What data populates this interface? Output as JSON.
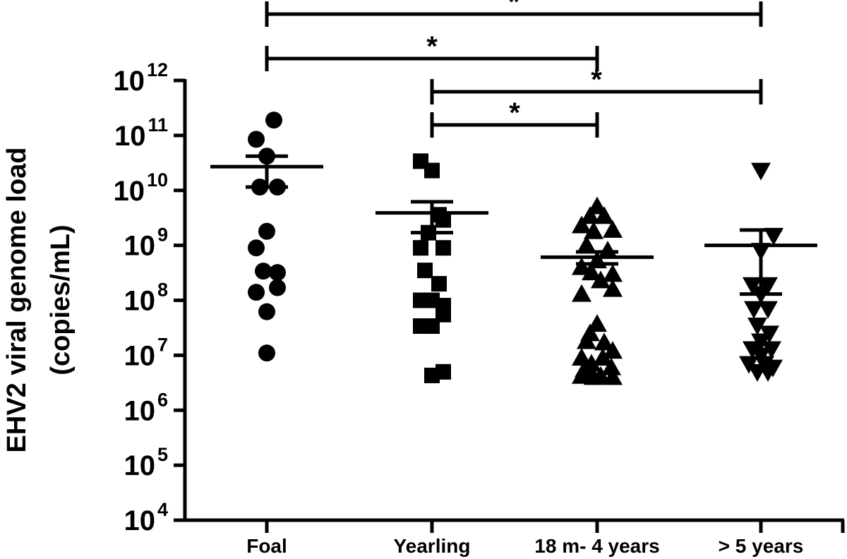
{
  "chart_data": {
    "type": "scatter",
    "yscale": "log10",
    "ylim": [
      10000.0,
      1000000000000.0
    ],
    "ylabel": [
      "EHV2 viral genome load",
      "(copies/mL)"
    ],
    "yticks": [
      {
        "base": "10",
        "exp": "4"
      },
      {
        "base": "10",
        "exp": "5"
      },
      {
        "base": "10",
        "exp": "6"
      },
      {
        "base": "10",
        "exp": "7"
      },
      {
        "base": "10",
        "exp": "8"
      },
      {
        "base": "10",
        "exp": "9"
      },
      {
        "base": "10",
        "exp": "10"
      },
      {
        "base": "10",
        "exp": "11"
      },
      {
        "base": "10",
        "exp": "12"
      }
    ],
    "categories": [
      "Foal",
      "Yearling",
      "18 m- 4 years",
      "> 5 years"
    ],
    "groups": [
      {
        "name": "Foal",
        "marker": "circle",
        "mean": 27000000000.0,
        "sem_low": 11500000000.0,
        "sem_high": 42000000000.0,
        "points": [
          {
            "value": 190000000000.0,
            "offset": 0.1
          },
          {
            "value": 85000000000.0,
            "offset": -0.15
          },
          {
            "value": 42000000000.0,
            "offset": 0.0
          },
          {
            "value": 11500000000.0,
            "offset": -0.1
          },
          {
            "value": 11500000000.0,
            "offset": 0.15
          },
          {
            "value": 1800000000.0,
            "offset": 0.0
          },
          {
            "value": 900000000.0,
            "offset": -0.15
          },
          {
            "value": 340000000.0,
            "offset": -0.05
          },
          {
            "value": 320000000.0,
            "offset": 0.15
          },
          {
            "value": 140000000.0,
            "offset": -0.15
          },
          {
            "value": 170000000.0,
            "offset": 0.15
          },
          {
            "value": 62000000.0,
            "offset": 0.0
          },
          {
            "value": 11000000.0,
            "offset": 0.0
          }
        ]
      },
      {
        "name": "Yearling",
        "marker": "square",
        "mean": 3900000000.0,
        "sem_low": 1700000000.0,
        "sem_high": 6200000000.0,
        "points": [
          {
            "value": 34000000000.0,
            "offset": -0.16
          },
          {
            "value": 23000000000.0,
            "offset": 0.0
          },
          {
            "value": 3600000000.0,
            "offset": 0.1
          },
          {
            "value": 2900000000.0,
            "offset": 0.16
          },
          {
            "value": 1700000000.0,
            "offset": -0.05
          },
          {
            "value": 900000000.0,
            "offset": -0.16
          },
          {
            "value": 900000000.0,
            "offset": 0.16
          },
          {
            "value": 350000000.0,
            "offset": -0.1
          },
          {
            "value": 200000000.0,
            "offset": 0.1
          },
          {
            "value": 100000000.0,
            "offset": -0.16
          },
          {
            "value": 100000000.0,
            "offset": 0.0
          },
          {
            "value": 80000000.0,
            "offset": 0.16
          },
          {
            "value": 55000000.0,
            "offset": 0.16
          },
          {
            "value": 34000000.0,
            "offset": -0.16
          },
          {
            "value": 34000000.0,
            "offset": 0.0
          },
          {
            "value": 5000000.0,
            "offset": 0.16
          },
          {
            "value": 4300000.0,
            "offset": 0.0
          }
        ]
      },
      {
        "name": "18 m- 4 years",
        "marker": "triangle-up",
        "mean": 610000000.0,
        "sem_low": 460000000.0,
        "sem_high": 760000000.0,
        "points": [
          {
            "value": 5100000000.0,
            "offset": 0.0
          },
          {
            "value": 3400000000.0,
            "offset": -0.1
          },
          {
            "value": 3400000000.0,
            "offset": 0.1
          },
          {
            "value": 2300000000.0,
            "offset": -0.22
          },
          {
            "value": 1800000000.0,
            "offset": -0.05
          },
          {
            "value": 1900000000.0,
            "offset": 0.22
          },
          {
            "value": 1000000000.0,
            "offset": -0.15
          },
          {
            "value": 800000000.0,
            "offset": 0.15
          },
          {
            "value": 530000000.0,
            "offset": 0.0
          },
          {
            "value": 400000000.0,
            "offset": -0.22
          },
          {
            "value": 300000000.0,
            "offset": 0.22
          },
          {
            "value": 320000000.0,
            "offset": -0.08
          },
          {
            "value": 230000000.0,
            "offset": 0.05
          },
          {
            "value": 130000000.0,
            "offset": -0.22
          },
          {
            "value": 160000000.0,
            "offset": 0.22
          },
          {
            "value": 37000000.0,
            "offset": 0.0
          },
          {
            "value": 25000000.0,
            "offset": -0.1
          },
          {
            "value": 18000000.0,
            "offset": -0.15
          },
          {
            "value": 17000000.0,
            "offset": 0.1
          },
          {
            "value": 9000000.0,
            "offset": -0.22
          },
          {
            "value": 12000000.0,
            "offset": 0.22
          },
          {
            "value": 7000000.0,
            "offset": -0.08
          },
          {
            "value": 9000000.0,
            "offset": 0.08
          },
          {
            "value": 6000000.0,
            "offset": 0.2
          },
          {
            "value": 5500000.0,
            "offset": -0.18
          },
          {
            "value": 4200000.0,
            "offset": -0.22
          },
          {
            "value": 4000000.0,
            "offset": -0.05
          },
          {
            "value": 4200000.0,
            "offset": 0.05
          },
          {
            "value": 4000000.0,
            "offset": 0.22
          }
        ]
      },
      {
        "name": "> 5 years",
        "marker": "triangle-down",
        "mean": 1000000000.0,
        "sem_low": 130000000.0,
        "sem_high": 1900000000.0,
        "points": [
          {
            "value": 23000000000.0,
            "offset": 0.0
          },
          {
            "value": 1500000000.0,
            "offset": 0.18
          },
          {
            "value": 800000000.0,
            "offset": 0.0
          },
          {
            "value": 190000000.0,
            "offset": -0.12
          },
          {
            "value": 190000000.0,
            "offset": 0.1
          },
          {
            "value": 130000000.0,
            "offset": 0.0
          },
          {
            "value": 70000000.0,
            "offset": -0.1
          },
          {
            "value": 70000000.0,
            "offset": 0.1
          },
          {
            "value": 35000000.0,
            "offset": -0.05
          },
          {
            "value": 25000000.0,
            "offset": 0.12
          },
          {
            "value": 18000000.0,
            "offset": 0.0
          },
          {
            "value": 13000000.0,
            "offset": -0.12
          },
          {
            "value": 13000000.0,
            "offset": 0.15
          },
          {
            "value": 10000000.0,
            "offset": 0.0
          },
          {
            "value": 7000000.0,
            "offset": -0.17
          },
          {
            "value": 7000000.0,
            "offset": 0.05
          },
          {
            "value": 6000000.0,
            "offset": 0.17
          },
          {
            "value": 5000000.0,
            "offset": -0.05
          },
          {
            "value": 5000000.0,
            "offset": 0.1
          }
        ]
      }
    ],
    "significance": [
      {
        "from": "Foal",
        "to": "> 5 years",
        "label": "*"
      },
      {
        "from": "Foal",
        "to": "18 m- 4 years",
        "label": "*"
      },
      {
        "from": "Yearling",
        "to": "> 5 years",
        "label": "*"
      },
      {
        "from": "Yearling",
        "to": "18 m- 4 years",
        "label": "*"
      }
    ]
  }
}
